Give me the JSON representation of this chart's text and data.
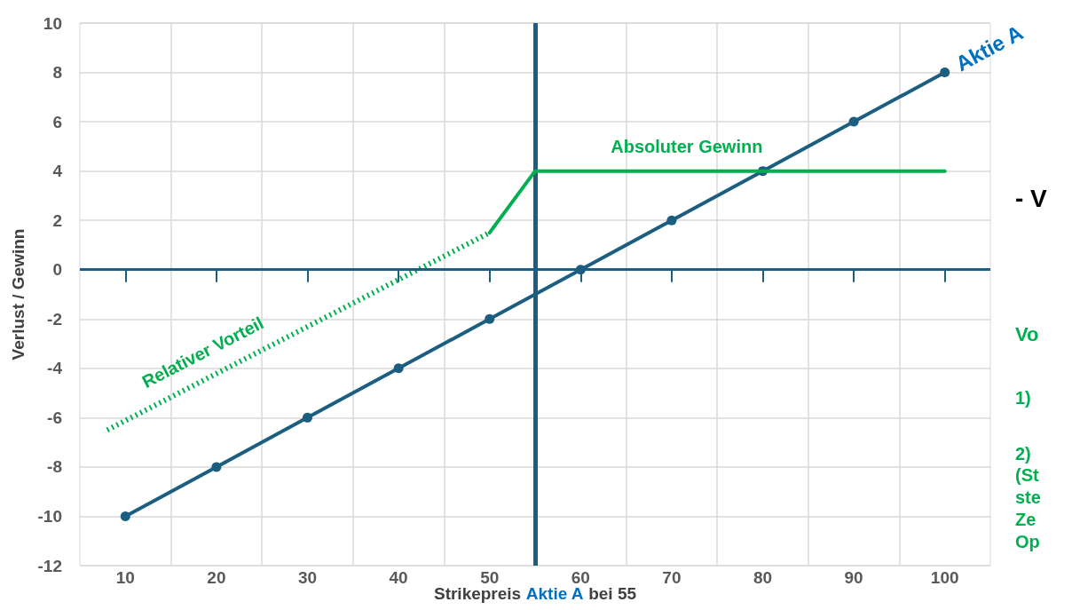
{
  "chart_data": {
    "type": "line",
    "xlabel": "Strikepreis Aktie A bei 55",
    "ylabel": "Verlust / Gewinn",
    "xlim": [
      5,
      105
    ],
    "xticks": [
      10,
      20,
      30,
      40,
      50,
      60,
      70,
      80,
      90,
      100
    ],
    "ylim": [
      -12,
      10
    ],
    "yticks": [
      -12,
      -10,
      -8,
      -6,
      -4,
      -2,
      0,
      2,
      4,
      6,
      8,
      10
    ],
    "grid": true,
    "series": [
      {
        "name": "Aktie A",
        "color": "#1b5e80",
        "x": [
          10,
          20,
          30,
          40,
          50,
          60,
          70,
          80,
          90,
          100
        ],
        "values": [
          -10,
          -8,
          -6,
          -4,
          -2,
          0,
          2,
          4,
          6,
          8
        ],
        "marker": "circle",
        "line_style": "solid"
      },
      {
        "name": "Relativer Vorteil",
        "color": "#00b050",
        "x": [
          8,
          50
        ],
        "values": [
          -6.5,
          1.5
        ],
        "marker": "none",
        "line_style": "dotted"
      },
      {
        "name": "Absoluter Gewinn",
        "color": "#00b050",
        "x": [
          50,
          55,
          100
        ],
        "values": [
          1.5,
          4,
          4
        ],
        "marker": "none",
        "line_style": "solid"
      }
    ],
    "ref_lines": [
      {
        "axis": "x",
        "value": 55,
        "color": "#1b5e80"
      },
      {
        "axis": "y",
        "value": 0,
        "color": "#1b5e80"
      }
    ],
    "annotations": [
      "- V",
      "Vo",
      "1)",
      "2)",
      "(St",
      "ste",
      "Ze",
      "Op"
    ]
  }
}
